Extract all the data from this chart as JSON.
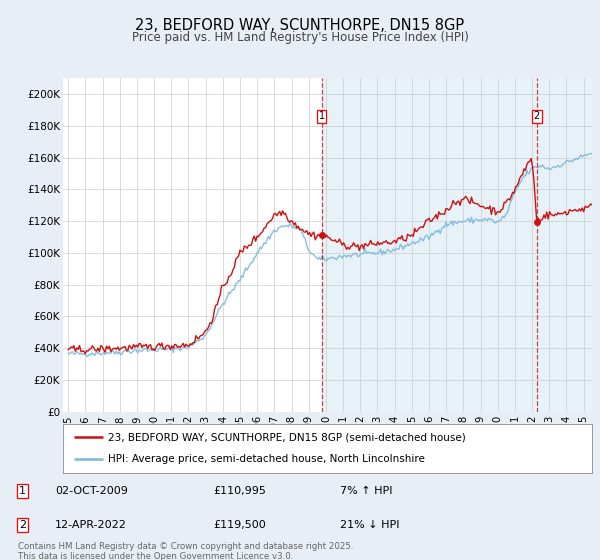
{
  "title": "23, BEDFORD WAY, SCUNTHORPE, DN15 8GP",
  "subtitle": "Price paid vs. HM Land Registry's House Price Index (HPI)",
  "title_fontsize": 10.5,
  "subtitle_fontsize": 8.5,
  "bg_color": "#e8eef5",
  "plot_bg_color": "#ffffff",
  "grid_color": "#cccccc",
  "hpi_color": "#7ab8d9",
  "price_color": "#cc1111",
  "marker_color": "#cc1111",
  "vline_color": "#cc1111",
  "ylim": [
    0,
    210000
  ],
  "yticks": [
    0,
    20000,
    40000,
    60000,
    80000,
    100000,
    120000,
    140000,
    160000,
    180000,
    200000
  ],
  "ytick_labels": [
    "£0",
    "£20K",
    "£40K",
    "£60K",
    "£80K",
    "£100K",
    "£120K",
    "£140K",
    "£160K",
    "£180K",
    "£200K"
  ],
  "xmin_year": 1994.7,
  "xmax_year": 2025.5,
  "xtick_years": [
    1995,
    1996,
    1997,
    1998,
    1999,
    2000,
    2001,
    2002,
    2003,
    2004,
    2005,
    2006,
    2007,
    2008,
    2009,
    2010,
    2011,
    2012,
    2013,
    2014,
    2015,
    2016,
    2017,
    2018,
    2019,
    2020,
    2021,
    2022,
    2023,
    2024,
    2025
  ],
  "marker1_x": 2009.75,
  "marker1_y": 110995,
  "marker2_x": 2022.28,
  "marker2_y": 119500,
  "legend_line1": "23, BEDFORD WAY, SCUNTHORPE, DN15 8GP (semi-detached house)",
  "legend_line2": "HPI: Average price, semi-detached house, North Lincolnshire",
  "table_row1": [
    "1",
    "02-OCT-2009",
    "£110,995",
    "7% ↑ HPI"
  ],
  "table_row2": [
    "2",
    "12-APR-2022",
    "£119,500",
    "21% ↓ HPI"
  ],
  "footnote": "Contains HM Land Registry data © Crown copyright and database right 2025.\nThis data is licensed under the Open Government Licence v3.0."
}
